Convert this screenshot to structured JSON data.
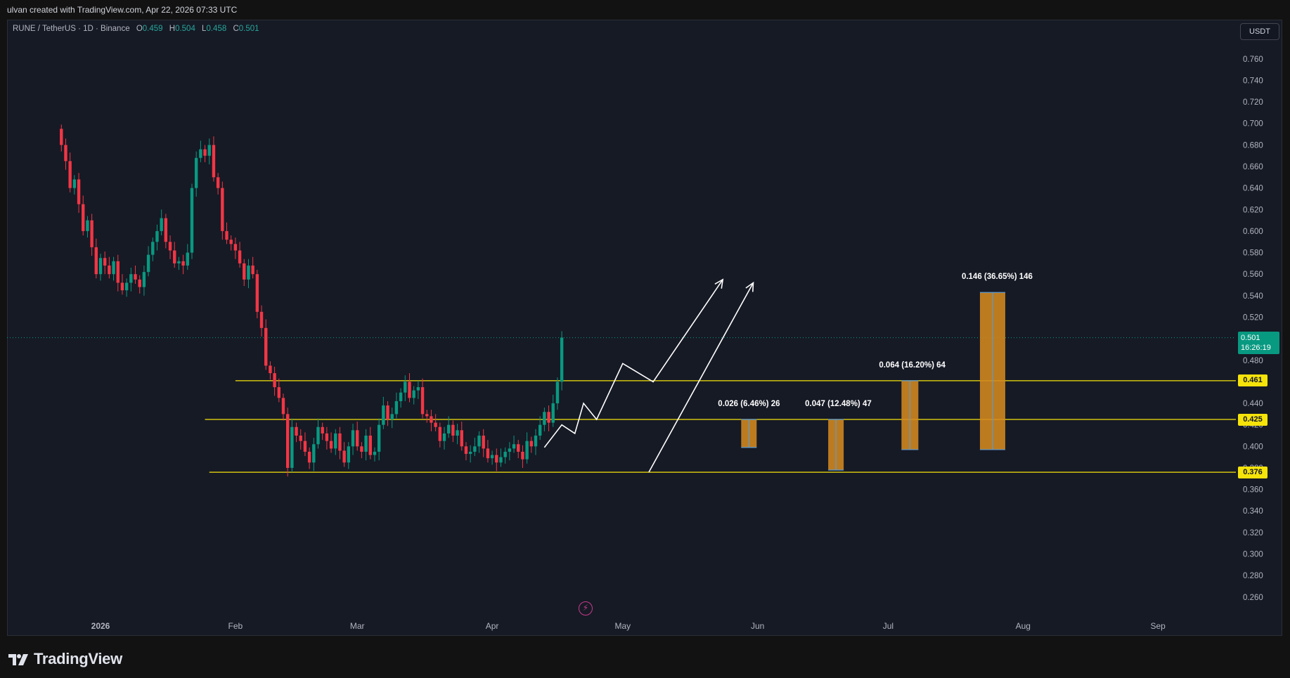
{
  "header": {
    "attribution": "ulvan created with TradingView.com, Apr 22, 2026 07:33 UTC"
  },
  "legend": {
    "symbol": "RUNE / TetherUS · 1D · Binance",
    "open_label": "O",
    "open": "0.459",
    "high_label": "H",
    "high": "0.504",
    "low_label": "L",
    "low": "0.458",
    "close_label": "C",
    "close": "0.501"
  },
  "currency_button": "USDT",
  "last_price": {
    "value": "0.501",
    "countdown": "16:26:19"
  },
  "levels": [
    {
      "price": 0.461,
      "label": "0.461"
    },
    {
      "price": 0.425,
      "label": "0.425"
    },
    {
      "price": 0.376,
      "label": "0.376"
    }
  ],
  "measurements": [
    {
      "label": "0.026 (6.46%) 26",
      "from": 0.399,
      "to": 0.425,
      "x": "2026-05-30"
    },
    {
      "label": "0.047 (12.48%) 47",
      "from": 0.378,
      "to": 0.425,
      "x": "2026-06-19"
    },
    {
      "label": "0.064 (16.20%) 64",
      "from": 0.397,
      "to": 0.461,
      "x": "2026-07-06"
    },
    {
      "label": "0.146 (36.65%) 146",
      "from": 0.397,
      "to": 0.543,
      "x": "2026-07-25"
    }
  ],
  "footer": {
    "brand": "TradingView"
  },
  "colors": {
    "up": "#089981",
    "down": "#f23645",
    "level": "#f5e30a",
    "box": "#d4891f",
    "projection": "#ffffff",
    "background": "#161a25"
  },
  "icons": {
    "alert": "lightning-icon",
    "logo": "tradingview-logo"
  },
  "chart_data": {
    "type": "candlestick",
    "title": "RUNE / TetherUS · 1D · Binance",
    "y_axis": {
      "range": [
        0.245,
        0.775
      ],
      "ticks": [
        "0.260",
        "0.280",
        "0.300",
        "0.320",
        "0.340",
        "0.360",
        "0.380",
        "0.400",
        "0.420",
        "0.440",
        "0.460",
        "0.480",
        "0.500",
        "0.520",
        "0.540",
        "0.560",
        "0.580",
        "0.600",
        "0.620",
        "0.640",
        "0.660",
        "0.680",
        "0.700",
        "0.720",
        "0.740",
        "0.760"
      ],
      "side": "right"
    },
    "x_axis": {
      "ticks": [
        {
          "date": "2026-01-01",
          "label": "2026"
        },
        {
          "date": "2026-02-01",
          "label": "Feb"
        },
        {
          "date": "2026-03-01",
          "label": "Mar"
        },
        {
          "date": "2026-04-01",
          "label": "Apr"
        },
        {
          "date": "2026-05-01",
          "label": "May"
        },
        {
          "date": "2026-06-01",
          "label": "Jun"
        },
        {
          "date": "2026-07-01",
          "label": "Jul"
        },
        {
          "date": "2026-08-01",
          "label": "Aug"
        },
        {
          "date": "2026-09-01",
          "label": "Sep"
        }
      ]
    },
    "grid": false,
    "candles_start_date": "2025-12-23",
    "closes": [
      0.68,
      0.665,
      0.64,
      0.648,
      0.625,
      0.6,
      0.61,
      0.585,
      0.56,
      0.575,
      0.568,
      0.56,
      0.572,
      0.552,
      0.545,
      0.552,
      0.56,
      0.555,
      0.548,
      0.562,
      0.578,
      0.59,
      0.6,
      0.612,
      0.59,
      0.582,
      0.57,
      0.572,
      0.568,
      0.58,
      0.64,
      0.668,
      0.676,
      0.67,
      0.68,
      0.65,
      0.64,
      0.6,
      0.592,
      0.588,
      0.582,
      0.57,
      0.555,
      0.568,
      0.56,
      0.525,
      0.51,
      0.475,
      0.468,
      0.455,
      0.445,
      0.43,
      0.38,
      0.418,
      0.41,
      0.405,
      0.395,
      0.385,
      0.402,
      0.418,
      0.412,
      0.405,
      0.398,
      0.412,
      0.396,
      0.385,
      0.4,
      0.415,
      0.4,
      0.395,
      0.41,
      0.392,
      0.395,
      0.42,
      0.438,
      0.425,
      0.43,
      0.442,
      0.45,
      0.46,
      0.445,
      0.452,
      0.455,
      0.43,
      0.428,
      0.422,
      0.418,
      0.405,
      0.412,
      0.42,
      0.41,
      0.415,
      0.4,
      0.393,
      0.395,
      0.4,
      0.41,
      0.398,
      0.389,
      0.392,
      0.385,
      0.39,
      0.395,
      0.398,
      0.402,
      0.395,
      0.388,
      0.405,
      0.4,
      0.41,
      0.42,
      0.432,
      0.422,
      0.44,
      0.46,
      0.501
    ],
    "annotations": {
      "projection_paths": [
        [
          [
            "2026-04-13",
            0.399
          ],
          [
            "2026-04-17",
            0.42
          ],
          [
            "2026-04-20",
            0.412
          ],
          [
            "2026-04-22",
            0.44
          ],
          [
            "2026-04-25",
            0.425
          ],
          [
            "2026-05-01",
            0.477
          ],
          [
            "2026-05-08",
            0.46
          ],
          [
            "2026-05-24",
            0.555
          ]
        ],
        [
          [
            "2026-05-07",
            0.376
          ],
          [
            "2026-05-31",
            0.552
          ]
        ]
      ],
      "level_lines": [
        {
          "price": 0.461,
          "from": "2026-02-01"
        },
        {
          "price": 0.425,
          "from": "2026-01-25"
        },
        {
          "price": 0.376,
          "from": "2026-01-26"
        }
      ]
    }
  }
}
